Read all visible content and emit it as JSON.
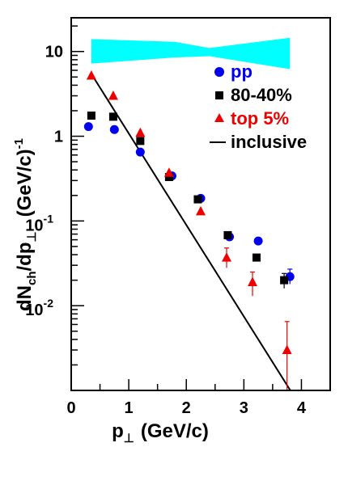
{
  "chart_data": {
    "type": "scatter",
    "xlabel": "p",
    "xlabel_sub": "⊥",
    "xlabel_unit": "(GeV/c)",
    "ylabel": "dN",
    "ylabel_sub1": "ch",
    "ylabel_mid": "/dp",
    "ylabel_sub2": "⊥",
    "ylabel_unit": "(GeV/c)",
    "ylabel_unit_sup": "-1",
    "xlim": [
      0,
      4.5
    ],
    "ylim": [
      0.001,
      25
    ],
    "yscale": "log",
    "x_ticks": [
      "0",
      "1",
      "2",
      "3",
      "4"
    ],
    "y_ticks": [
      {
        "value": 10,
        "label": "10"
      },
      {
        "value": 1,
        "label": "1"
      },
      {
        "value": 0.1,
        "base": "10",
        "exp": "-1"
      },
      {
        "value": 0.01,
        "base": "10",
        "exp": "-2"
      }
    ],
    "legend_position": "top-right",
    "series": [
      {
        "name": "pp",
        "marker": "circle",
        "color": "#0000ee",
        "points": [
          {
            "x": 0.3,
            "y": 1.3
          },
          {
            "x": 0.75,
            "y": 1.2
          },
          {
            "x": 1.2,
            "y": 0.65
          },
          {
            "x": 1.75,
            "y": 0.34
          },
          {
            "x": 2.25,
            "y": 0.185
          },
          {
            "x": 2.75,
            "y": 0.065
          },
          {
            "x": 3.25,
            "y": 0.058
          },
          {
            "x": 3.8,
            "y": 0.022,
            "err": [
              0.018,
              0.027
            ]
          }
        ]
      },
      {
        "name": "80-40%",
        "marker": "square",
        "color": "#000000",
        "points": [
          {
            "x": 0.35,
            "y": 1.75
          },
          {
            "x": 0.73,
            "y": 1.7
          },
          {
            "x": 1.2,
            "y": 0.88
          },
          {
            "x": 1.7,
            "y": 0.33
          },
          {
            "x": 2.2,
            "y": 0.18
          },
          {
            "x": 2.72,
            "y": 0.068
          },
          {
            "x": 3.22,
            "y": 0.037
          },
          {
            "x": 3.7,
            "y": 0.02,
            "err": [
              0.016,
              0.024
            ]
          }
        ]
      },
      {
        "name": "top 5%",
        "marker": "triangle",
        "color": "#ee0000",
        "points": [
          {
            "x": 0.35,
            "y": 5.2
          },
          {
            "x": 0.73,
            "y": 3.0
          },
          {
            "x": 1.2,
            "y": 1.1
          },
          {
            "x": 1.7,
            "y": 0.37
          },
          {
            "x": 2.25,
            "y": 0.13
          },
          {
            "x": 2.7,
            "y": 0.037,
            "err": [
              0.028,
              0.048
            ]
          },
          {
            "x": 3.15,
            "y": 0.019,
            "err": [
              0.013,
              0.025
            ]
          },
          {
            "x": 3.75,
            "y": 0.003,
            "err": [
              0.001,
              0.0065
            ]
          }
        ]
      },
      {
        "name": "inclusive",
        "marker": "line",
        "color": "#000000",
        "points": [
          {
            "x": 0.4,
            "y": 4.8
          },
          {
            "x": 3.85,
            "y": 0.0009
          }
        ]
      }
    ],
    "band": {
      "color": "#00ffff",
      "upper": [
        {
          "x": 0.35,
          "y": 14.0
        },
        {
          "x": 1.8,
          "y": 13.0
        },
        {
          "x": 2.4,
          "y": 11.0
        },
        {
          "x": 3.8,
          "y": 14.5
        }
      ],
      "lower": [
        {
          "x": 0.35,
          "y": 7.2
        },
        {
          "x": 1.8,
          "y": 8.5
        },
        {
          "x": 2.4,
          "y": 8.8
        },
        {
          "x": 3.8,
          "y": 6.2
        }
      ]
    }
  }
}
